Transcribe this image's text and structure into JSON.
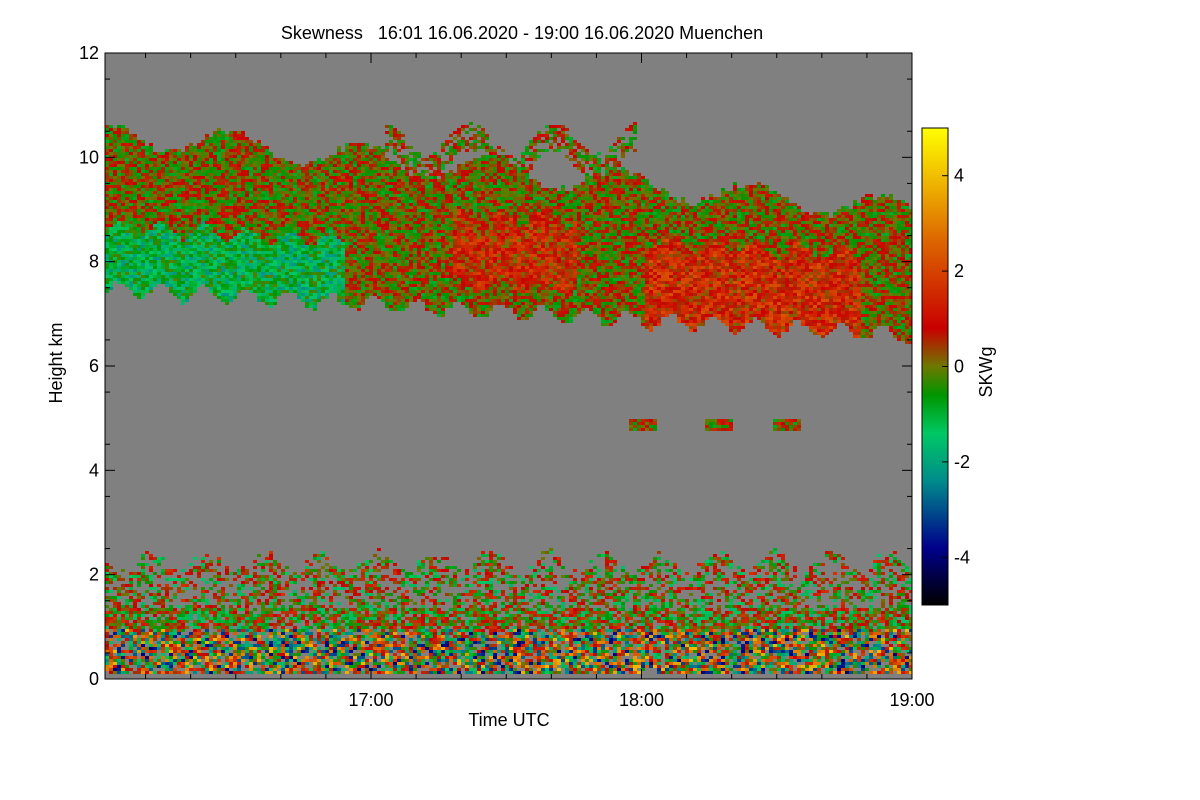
{
  "chart_data": {
    "type": "heatmap",
    "title": "Skewness   16:01 16.06.2020 - 19:00 16.06.2020 Muenchen",
    "xlabel": "Time UTC",
    "ylabel": "Height km",
    "x_range_hours": [
      16.0167,
      19.0
    ],
    "xlim_labels": [
      "16:01",
      "19:00"
    ],
    "x_ticks": [
      {
        "value": 17.0,
        "label": "17:00"
      },
      {
        "value": 18.0,
        "label": "18:00"
      },
      {
        "value": 19.0,
        "label": "19:00"
      }
    ],
    "ylim": [
      0,
      12
    ],
    "y_ticks": [
      {
        "value": 0,
        "label": "0"
      },
      {
        "value": 2,
        "label": "2"
      },
      {
        "value": 4,
        "label": "4"
      },
      {
        "value": 6,
        "label": "6"
      },
      {
        "value": 8,
        "label": "8"
      },
      {
        "value": 10,
        "label": "10"
      },
      {
        "value": 12,
        "label": "12"
      }
    ],
    "colorbar": {
      "label": "SKWg",
      "range": [
        -5,
        5
      ],
      "ticks": [
        {
          "value": 4,
          "label": "4"
        },
        {
          "value": 2,
          "label": "2"
        },
        {
          "value": 0,
          "label": "0"
        },
        {
          "value": -2,
          "label": "-2"
        },
        {
          "value": -4,
          "label": "-4"
        }
      ],
      "colors": [
        "#000000",
        "#00008b",
        "#008b8b",
        "#00c864",
        "#009600",
        "#6e7800",
        "#c80000",
        "#dc6400",
        "#ffff00"
      ]
    },
    "background_color": "#808080",
    "features": [
      {
        "name": "upper cloud layer",
        "time_start": 16.0167,
        "time_end": 19.0,
        "base_km_start": 7.5,
        "base_km_end": 6.6,
        "top_km_start": 10.5,
        "top_km_end": 9.0,
        "dominant": "mixed green / olive / red"
      },
      {
        "name": "boundary layer",
        "time_start": 16.0167,
        "time_end": 19.0,
        "base_km": 0.1,
        "top_km": 2.2,
        "dominant": "noisy mixed values"
      },
      {
        "name": "small echoes",
        "time_start": 17.95,
        "time_end": 18.55,
        "height_km": 4.9
      }
    ]
  }
}
